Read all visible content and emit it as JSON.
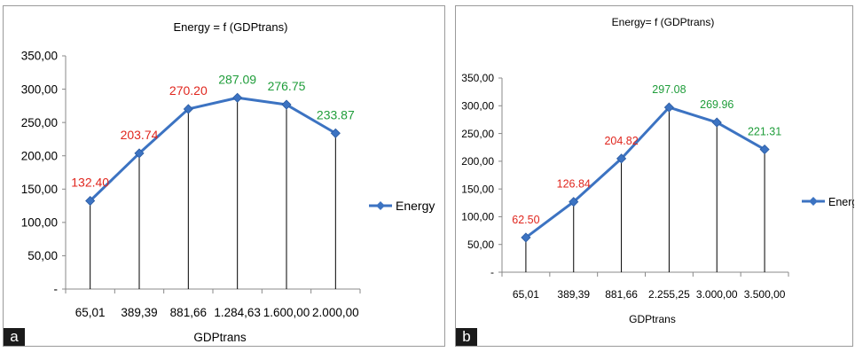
{
  "chart_data": [
    {
      "type": "line",
      "panel": "a",
      "title": "Energy = f (GDPtrans)",
      "xlabel": "GDPtrans",
      "ylabel": "",
      "categories": [
        "65,01",
        "389,39",
        "881,66",
        "1.284,63",
        "1.600,00",
        "2.000,00"
      ],
      "yticks": [
        "-",
        "50,00",
        "100,00",
        "150,00",
        "200,00",
        "250,00",
        "300,00",
        "350,00"
      ],
      "ylim": [
        0,
        350
      ],
      "series": [
        {
          "name": "Energy",
          "values": [
            132.4,
            203.74,
            270.2,
            287.09,
            276.75,
            233.87
          ],
          "labels": [
            "132.40",
            "203.74",
            "270.20",
            "287.09",
            "276.75",
            "233.87"
          ],
          "label_colors": [
            "#e0261e",
            "#e0261e",
            "#e0261e",
            "#1f9d3a",
            "#1f9d3a",
            "#1f9d3a"
          ]
        }
      ],
      "legend": "right",
      "drop_lines": true,
      "line_color": "#3c73c2"
    },
    {
      "type": "line",
      "panel": "b",
      "title": "Energy= f (GDPtrans)",
      "xlabel": "GDPtrans",
      "ylabel": "",
      "categories": [
        "65,01",
        "389,39",
        "881,66",
        "2.255,25",
        "3.000,00",
        "3.500,00"
      ],
      "yticks": [
        "-",
        "50,00",
        "100,00",
        "150,00",
        "200,00",
        "250,00",
        "300,00",
        "350,00"
      ],
      "ylim": [
        0,
        350
      ],
      "series": [
        {
          "name": "Energy",
          "values": [
            62.5,
            126.84,
            204.82,
            297.08,
            269.96,
            221.31
          ],
          "labels": [
            "62.50",
            "126.84",
            "204.82",
            "297.08",
            "269.96",
            "221.31"
          ],
          "label_colors": [
            "#e0261e",
            "#e0261e",
            "#e0261e",
            "#1f9d3a",
            "#1f9d3a",
            "#1f9d3a"
          ]
        }
      ],
      "legend": "right",
      "drop_lines": true,
      "line_color": "#3c73c2"
    }
  ],
  "panels": {
    "a_letter": "a",
    "b_letter": "b"
  }
}
